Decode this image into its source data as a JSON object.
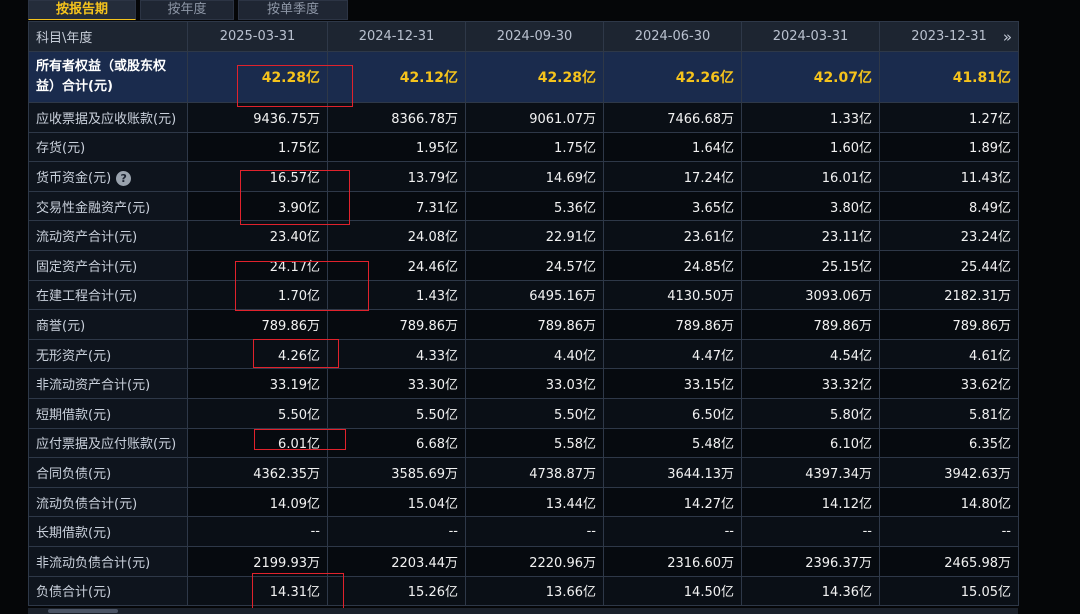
{
  "tabs": [
    "按报告期",
    "按年度",
    "按单季度"
  ],
  "header": {
    "label": "科目\\年度",
    "periods": [
      "2025-03-31",
      "2024-12-31",
      "2024-09-30",
      "2024-06-30",
      "2024-03-31",
      "2023-12-31"
    ]
  },
  "rows": [
    {
      "label": "所有者权益（或股东权益）合计(元)",
      "values": [
        "42.28亿",
        "42.12亿",
        "42.28亿",
        "42.26亿",
        "42.07亿",
        "41.81亿"
      ]
    },
    {
      "label": "应收票据及应收账款(元)",
      "values": [
        "9436.75万",
        "8366.78万",
        "9061.07万",
        "7466.68万",
        "1.33亿",
        "1.27亿"
      ]
    },
    {
      "label": "存货(元)",
      "values": [
        "1.75亿",
        "1.95亿",
        "1.75亿",
        "1.64亿",
        "1.60亿",
        "1.89亿"
      ]
    },
    {
      "label": "货币资金(元)",
      "values": [
        "16.57亿",
        "13.79亿",
        "14.69亿",
        "17.24亿",
        "16.01亿",
        "11.43亿"
      ]
    },
    {
      "label": "交易性金融资产(元)",
      "values": [
        "3.90亿",
        "7.31亿",
        "5.36亿",
        "3.65亿",
        "3.80亿",
        "8.49亿"
      ]
    },
    {
      "label": "流动资产合计(元)",
      "values": [
        "23.40亿",
        "24.08亿",
        "22.91亿",
        "23.61亿",
        "23.11亿",
        "23.24亿"
      ]
    },
    {
      "label": "固定资产合计(元)",
      "values": [
        "24.17亿",
        "24.46亿",
        "24.57亿",
        "24.85亿",
        "25.15亿",
        "25.44亿"
      ]
    },
    {
      "label": "在建工程合计(元)",
      "values": [
        "1.70亿",
        "1.43亿",
        "6495.16万",
        "4130.50万",
        "3093.06万",
        "2182.31万"
      ]
    },
    {
      "label": "商誉(元)",
      "values": [
        "789.86万",
        "789.86万",
        "789.86万",
        "789.86万",
        "789.86万",
        "789.86万"
      ]
    },
    {
      "label": "无形资产(元)",
      "values": [
        "4.26亿",
        "4.33亿",
        "4.40亿",
        "4.47亿",
        "4.54亿",
        "4.61亿"
      ]
    },
    {
      "label": "非流动资产合计(元)",
      "values": [
        "33.19亿",
        "33.30亿",
        "33.03亿",
        "33.15亿",
        "33.32亿",
        "33.62亿"
      ]
    },
    {
      "label": "短期借款(元)",
      "values": [
        "5.50亿",
        "5.50亿",
        "5.50亿",
        "6.50亿",
        "5.80亿",
        "5.81亿"
      ]
    },
    {
      "label": "应付票据及应付账款(元)",
      "values": [
        "6.01亿",
        "6.68亿",
        "5.58亿",
        "5.48亿",
        "6.10亿",
        "6.35亿"
      ]
    },
    {
      "label": "合同负债(元)",
      "values": [
        "4362.35万",
        "3585.69万",
        "4738.87万",
        "3644.13万",
        "4397.34万",
        "3942.63万"
      ]
    },
    {
      "label": "流动负债合计(元)",
      "values": [
        "14.09亿",
        "15.04亿",
        "13.44亿",
        "14.27亿",
        "14.12亿",
        "14.80亿"
      ]
    },
    {
      "label": "长期借款(元)",
      "values": [
        "--",
        "--",
        "--",
        "--",
        "--",
        "--"
      ]
    },
    {
      "label": "非流动负债合计(元)",
      "values": [
        "2199.93万",
        "2203.44万",
        "2220.96万",
        "2316.60万",
        "2396.37万",
        "2465.98万"
      ]
    },
    {
      "label": "负债合计(元)",
      "values": [
        "14.31亿",
        "15.26亿",
        "13.66亿",
        "14.50亿",
        "14.36亿",
        "15.05亿"
      ]
    }
  ],
  "colors": {
    "accent": "#f5c31c",
    "annotation": "#e0222c",
    "highlight_row": "#1a2b4d"
  },
  "icons": {
    "help": "question-circle-icon",
    "more": "double-chevron-right-icon"
  }
}
